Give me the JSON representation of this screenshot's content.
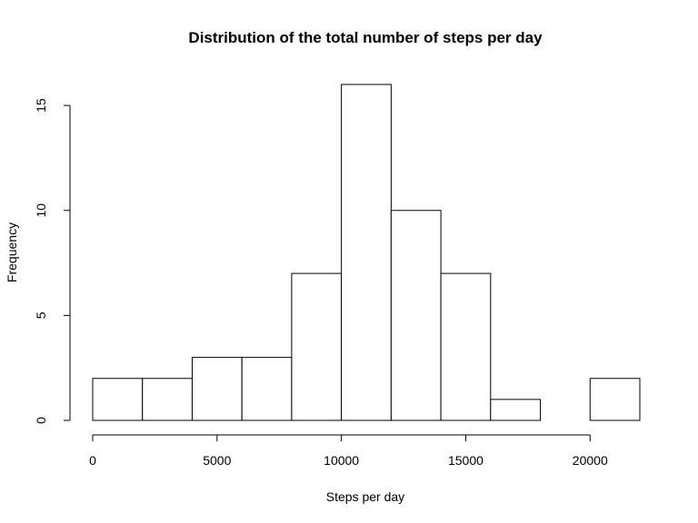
{
  "chart_data": {
    "type": "bar",
    "title": "Distribution of the total number of steps per day",
    "xlabel": "Steps per day",
    "ylabel": "Frequency",
    "bin_edges": [
      0,
      2000,
      4000,
      6000,
      8000,
      10000,
      12000,
      14000,
      16000,
      18000,
      20000,
      22000
    ],
    "values": [
      2,
      2,
      3,
      3,
      7,
      16,
      10,
      7,
      1,
      0,
      2
    ],
    "xlim": [
      0,
      22000
    ],
    "ylim": [
      0,
      16
    ],
    "x_ticks": [
      0,
      5000,
      10000,
      15000,
      20000
    ],
    "x_tick_labels": [
      "0",
      "5000",
      "10000",
      "15000",
      "20000"
    ],
    "y_ticks": [
      0,
      5,
      10,
      15
    ],
    "y_tick_labels": [
      "0",
      "5",
      "10",
      "15"
    ],
    "grid": false
  }
}
